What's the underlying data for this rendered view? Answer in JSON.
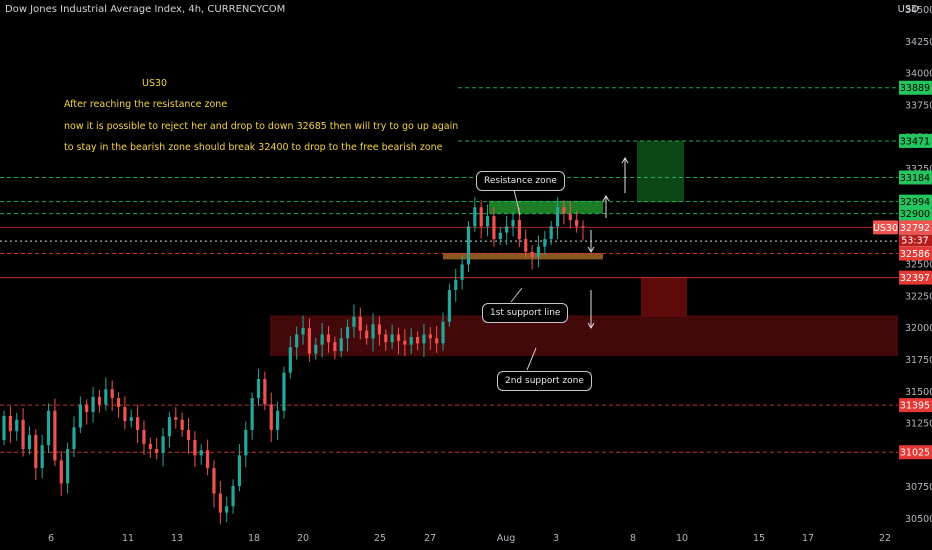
{
  "header": {
    "title": "Dow Jones Industrial Average Index, 4h, CURRENCYCOM",
    "currency": "USD"
  },
  "notes": {
    "title": "US30",
    "line1": "After reaching the resistance zone",
    "line2": "now it is possible to reject her and drop to down 32685 then will try to go up again",
    "line3": "to stay in the bearish zone should break 32400 to drop to the free bearish zone"
  },
  "callouts": {
    "resistance": "Resistance zone",
    "support1": "1st support line",
    "support2": "2nd support zone"
  },
  "symbol": "US30",
  "countdown": "53:37",
  "colors": {
    "bull": "#26a69a",
    "bear": "#ef5350",
    "green_level": "#22c55e",
    "red_level": "#e53935",
    "note": "#f5d442"
  },
  "chart_data": {
    "type": "candlestick",
    "y_range": [
      30450,
      34700
    ],
    "y_ticks": [
      34500,
      34250,
      34000,
      33750,
      33500,
      33250,
      33000,
      32750,
      32500,
      32250,
      32000,
      31750,
      31500,
      31250,
      31000,
      30750,
      30500
    ],
    "x_ticks": [
      "6",
      "11",
      "13",
      "18",
      "20",
      "25",
      "27",
      "Aug",
      "3",
      "8",
      "10",
      "15",
      "17",
      "22"
    ],
    "price_levels": [
      {
        "value": 33889,
        "label": "33889",
        "style": "green-dashed"
      },
      {
        "value": 33471,
        "label": "33471",
        "style": "green-dashed"
      },
      {
        "value": 33184,
        "label": "33184",
        "style": "green-dashed"
      },
      {
        "value": 32994,
        "label": "32994",
        "style": "green-dashed"
      },
      {
        "value": 32900,
        "label": "32900",
        "style": "green-dashed"
      },
      {
        "value": 32792,
        "label": "32792",
        "style": "current"
      },
      {
        "value": 32684,
        "label": "32684",
        "style": "white-dotted"
      },
      {
        "value": 32586,
        "label": "32586",
        "style": "red-dashed"
      },
      {
        "value": 32397,
        "label": "32397",
        "style": "red-solid"
      },
      {
        "value": 31395,
        "label": "31395",
        "style": "red-dashed"
      },
      {
        "value": 31025,
        "label": "31025",
        "style": "red-dashed"
      }
    ],
    "zones": [
      {
        "name": "resistance zone",
        "from": 32900,
        "to": 33000
      },
      {
        "name": "1st support line",
        "from": 32540,
        "to": 32590
      },
      {
        "name": "2nd support zone",
        "from": 31780,
        "to": 32100
      },
      {
        "name": "target box up",
        "from": 32990,
        "to": 33471
      },
      {
        "name": "target box down",
        "from": 32090,
        "to": 32397
      }
    ],
    "closes": [
      31310,
      31190,
      31280,
      31050,
      31160,
      30900,
      31080,
      31350,
      30960,
      30780,
      31050,
      31220,
      31400,
      31340,
      31460,
      31400,
      31520,
      31450,
      31380,
      31270,
      31300,
      31200,
      31090,
      31050,
      31020,
      31150,
      31300,
      31280,
      31200,
      31120,
      31000,
      31040,
      30900,
      30700,
      30550,
      30600,
      30760,
      31000,
      31200,
      31450,
      31600,
      31400,
      31200,
      31350,
      31650,
      31850,
      31950,
      32000,
      31800,
      31870,
      31950,
      31890,
      31820,
      31920,
      32010,
      32090,
      31980,
      31920,
      32030,
      31950,
      31890,
      31950,
      31900,
      31870,
      31930,
      31880,
      31950,
      31920,
      31880,
      32050,
      32300,
      32380,
      32500,
      32800,
      32950,
      32800,
      32880,
      32700,
      32750,
      32800,
      32850,
      32700,
      32600,
      32560,
      32640,
      32700,
      32800,
      32950,
      32900,
      32850,
      32800,
      32792
    ]
  }
}
